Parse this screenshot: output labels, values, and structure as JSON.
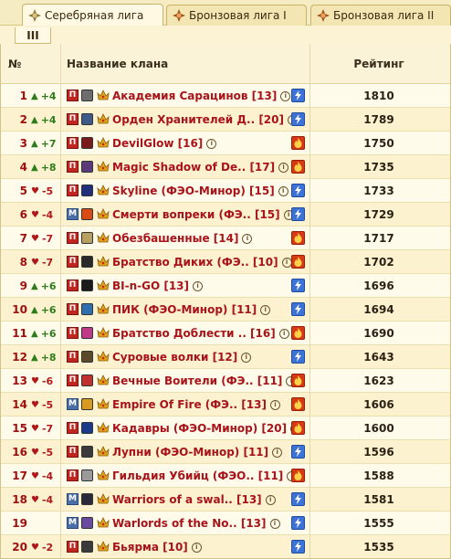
{
  "tabs": [
    {
      "label": "Серебряная лига",
      "active": true
    },
    {
      "label": "Бронзовая лига I",
      "active": false
    },
    {
      "label": "Бронзовая лига II",
      "active": false
    }
  ],
  "subtab": {
    "label": "III"
  },
  "table": {
    "headers": {
      "num": "№",
      "name": "Название клана",
      "rating": "Рейтинг"
    },
    "rows": [
      {
        "pos": "1",
        "dir": "up",
        "change": "+4",
        "type": "П",
        "name": "Академия Сарацинов [13]",
        "stat": "bolt",
        "rating": "1810",
        "emblem": "#6d6d6d"
      },
      {
        "pos": "2",
        "dir": "up",
        "change": "+4",
        "type": "П",
        "name": "Орден Хранителей Д.. [20]",
        "stat": "bolt",
        "rating": "1789",
        "emblem": "#3d5a8a"
      },
      {
        "pos": "3",
        "dir": "up",
        "change": "+7",
        "type": "П",
        "name": "DevilGlow [16]",
        "stat": "fire",
        "rating": "1750",
        "emblem": "#7a1a1a"
      },
      {
        "pos": "4",
        "dir": "up",
        "change": "+8",
        "type": "П",
        "name": "Magic Shadow of De.. [17]",
        "stat": "fire",
        "rating": "1735",
        "emblem": "#5a3a7a"
      },
      {
        "pos": "5",
        "dir": "down",
        "change": "-5",
        "type": "П",
        "name": "Skyline (ФЭО-Минор) [15]",
        "stat": "bolt",
        "rating": "1733",
        "emblem": "#20307a"
      },
      {
        "pos": "6",
        "dir": "down",
        "change": "-4",
        "type": "М",
        "name": "Смерти вопреки (ФЭ.. [15]",
        "stat": "bolt",
        "rating": "1729",
        "emblem": "#d84b14"
      },
      {
        "pos": "7",
        "dir": "down",
        "change": "-7",
        "type": "П",
        "name": "Обезбашенные [14]",
        "stat": "fire",
        "rating": "1717",
        "emblem": "#b8a060"
      },
      {
        "pos": "8",
        "dir": "down",
        "change": "-7",
        "type": "П",
        "name": "Братство Диких (ФЭ.. [10]",
        "stat": "fire",
        "rating": "1702",
        "emblem": "#2a2a2a"
      },
      {
        "pos": "9",
        "dir": "up",
        "change": "+6",
        "type": "П",
        "name": "BI-n-GO [13]",
        "stat": "bolt",
        "rating": "1696",
        "emblem": "#1a1a1a"
      },
      {
        "pos": "10",
        "dir": "up",
        "change": "+6",
        "type": "П",
        "name": "ПИК (ФЭО-Минор) [11]",
        "stat": "bolt",
        "rating": "1694",
        "emblem": "#2f6fb0"
      },
      {
        "pos": "11",
        "dir": "up",
        "change": "+6",
        "type": "П",
        "name": "Братство Доблести .. [16]",
        "stat": "fire",
        "rating": "1690",
        "emblem": "#c03a8a"
      },
      {
        "pos": "12",
        "dir": "up",
        "change": "+8",
        "type": "П",
        "name": "Суровые волки [12]",
        "stat": "bolt",
        "rating": "1643",
        "emblem": "#5a4a2a"
      },
      {
        "pos": "13",
        "dir": "down",
        "change": "-6",
        "type": "П",
        "name": "Вечные Воители (ФЭ.. [11]",
        "stat": "fire",
        "rating": "1623",
        "emblem": "#c03030"
      },
      {
        "pos": "14",
        "dir": "down",
        "change": "-5",
        "type": "М",
        "name": "Empire Of Fire (ФЭ.. [13]",
        "stat": "fire",
        "rating": "1606",
        "emblem": "#d89a20"
      },
      {
        "pos": "15",
        "dir": "down",
        "change": "-7",
        "type": "П",
        "name": "Кадавры (ФЭО-Минор) [20]",
        "stat": "fire",
        "rating": "1600",
        "emblem": "#1a3a8a"
      },
      {
        "pos": "16",
        "dir": "down",
        "change": "-5",
        "type": "П",
        "name": "Лупни (ФЭО-Минор) [11]",
        "stat": "bolt",
        "rating": "1596",
        "emblem": "#3a3a3a"
      },
      {
        "pos": "17",
        "dir": "down",
        "change": "-4",
        "type": "П",
        "name": "Гильдия Убийц (ФЭО.. [11]",
        "stat": "fire",
        "rating": "1588",
        "emblem": "#9a9a9a"
      },
      {
        "pos": "18",
        "dir": "down",
        "change": "-4",
        "type": "М",
        "name": "Warriors of a swal.. [13]",
        "stat": "bolt",
        "rating": "1581",
        "emblem": "#2a2a3a"
      },
      {
        "pos": "19",
        "dir": "none",
        "change": "",
        "type": "М",
        "name": "Warlords of the No.. [13]",
        "stat": "bolt",
        "rating": "1555",
        "emblem": "#6a4aa0"
      },
      {
        "pos": "20",
        "dir": "down",
        "change": "-2",
        "type": "П",
        "name": "Бьярма [10]",
        "stat": "bolt",
        "rating": "1535",
        "emblem": "#3a3a3a"
      }
    ]
  }
}
